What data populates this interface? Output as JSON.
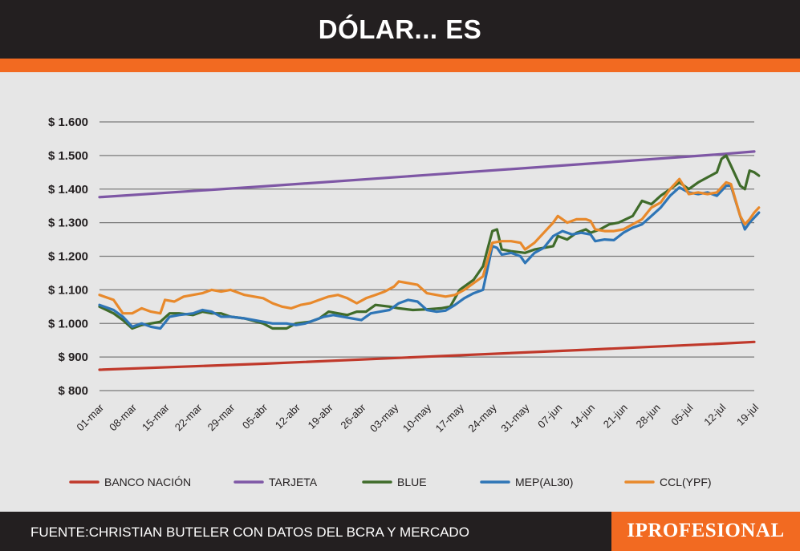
{
  "header": {
    "title": "DÓLAR... ES"
  },
  "footer": {
    "source": "FUENTE:CHRISTIAN BUTELER CON DATOS DEL BCRA Y MERCADO",
    "brand": "IPROFESIONAL"
  },
  "colors": {
    "header_bg": "#231f20",
    "accent": "#f26a21",
    "background": "#e6e6e6"
  },
  "chart_data": {
    "type": "line",
    "title": "",
    "xlabel": "",
    "ylabel": "",
    "ylim": [
      800,
      1600
    ],
    "yticks": [
      800,
      900,
      1000,
      1100,
      1200,
      1300,
      1400,
      1500,
      1600
    ],
    "ytick_labels": [
      "$ 800",
      "$ 900",
      "$ 1.000",
      "$ 1.100",
      "$ 1.200",
      "$ 1.300",
      "$ 1.400",
      "$ 1.500",
      "$ 1.600"
    ],
    "grid": true,
    "legend_position": "bottom",
    "xlim": [
      0,
      140
    ],
    "xticks": [
      {
        "label": "01-mar",
        "x": 0
      },
      {
        "label": "08-mar",
        "x": 7
      },
      {
        "label": "15-mar",
        "x": 14
      },
      {
        "label": "22-mar",
        "x": 21
      },
      {
        "label": "29-mar",
        "x": 28
      },
      {
        "label": "05-abr",
        "x": 35
      },
      {
        "label": "12-abr",
        "x": 42
      },
      {
        "label": "19-abr",
        "x": 49
      },
      {
        "label": "26-abr",
        "x": 56
      },
      {
        "label": "03-may",
        "x": 63
      },
      {
        "label": "10-may",
        "x": 70
      },
      {
        "label": "17-may",
        "x": 77
      },
      {
        "label": "24-may",
        "x": 84
      },
      {
        "label": "31-may",
        "x": 91
      },
      {
        "label": "07-jun",
        "x": 98
      },
      {
        "label": "14-jun",
        "x": 105
      },
      {
        "label": "21-jun",
        "x": 112
      },
      {
        "label": "28-jun",
        "x": 119
      },
      {
        "label": "05-jul",
        "x": 126
      },
      {
        "label": "12-jul",
        "x": 133
      },
      {
        "label": "19-jul",
        "x": 140
      }
    ],
    "series": [
      {
        "name": "BANCO NACIÓN",
        "color": "#c0392b",
        "points": [
          [
            0,
            862
          ],
          [
            35,
            880
          ],
          [
            70,
            901
          ],
          [
            105,
            922
          ],
          [
            133,
            940
          ],
          [
            140,
            945
          ]
        ]
      },
      {
        "name": "TARJETA",
        "color": "#7e57a5",
        "points": [
          [
            0,
            1376
          ],
          [
            35,
            1408
          ],
          [
            70,
            1442
          ],
          [
            105,
            1476
          ],
          [
            133,
            1504
          ],
          [
            140,
            1512
          ]
        ]
      },
      {
        "name": "BLUE",
        "color": "#3f6b2a",
        "points": [
          [
            0,
            1050
          ],
          [
            3,
            1030
          ],
          [
            5,
            1010
          ],
          [
            7,
            985
          ],
          [
            9,
            995
          ],
          [
            11,
            1000
          ],
          [
            13,
            1005
          ],
          [
            15,
            1030
          ],
          [
            17,
            1030
          ],
          [
            20,
            1025
          ],
          [
            22,
            1035
          ],
          [
            24,
            1030
          ],
          [
            26,
            1030
          ],
          [
            28,
            1020
          ],
          [
            31,
            1015
          ],
          [
            35,
            1000
          ],
          [
            37,
            985
          ],
          [
            40,
            985
          ],
          [
            42,
            1000
          ],
          [
            45,
            1005
          ],
          [
            47,
            1015
          ],
          [
            49,
            1035
          ],
          [
            51,
            1030
          ],
          [
            53,
            1025
          ],
          [
            55,
            1035
          ],
          [
            57,
            1035
          ],
          [
            59,
            1055
          ],
          [
            62,
            1050
          ],
          [
            64,
            1045
          ],
          [
            67,
            1040
          ],
          [
            70,
            1042
          ],
          [
            73,
            1045
          ],
          [
            75,
            1050
          ],
          [
            77,
            1100
          ],
          [
            80,
            1130
          ],
          [
            82,
            1170
          ],
          [
            84,
            1275
          ],
          [
            85,
            1280
          ],
          [
            86,
            1220
          ],
          [
            88,
            1215
          ],
          [
            91,
            1210
          ],
          [
            93,
            1220
          ],
          [
            95,
            1225
          ],
          [
            97,
            1230
          ],
          [
            98,
            1260
          ],
          [
            100,
            1250
          ],
          [
            102,
            1270
          ],
          [
            104,
            1280
          ],
          [
            105,
            1270
          ],
          [
            107,
            1280
          ],
          [
            109,
            1295
          ],
          [
            111,
            1300
          ],
          [
            114,
            1320
          ],
          [
            116,
            1365
          ],
          [
            118,
            1355
          ],
          [
            120,
            1380
          ],
          [
            122,
            1400
          ],
          [
            124,
            1420
          ],
          [
            126,
            1400
          ],
          [
            128,
            1420
          ],
          [
            130,
            1435
          ],
          [
            132,
            1450
          ],
          [
            133,
            1490
          ],
          [
            134,
            1500
          ],
          [
            135,
            1470
          ],
          [
            137,
            1410
          ],
          [
            138,
            1400
          ],
          [
            139,
            1455
          ],
          [
            140,
            1450
          ],
          [
            141,
            1440
          ]
        ]
      },
      {
        "name": "MEP(AL30)",
        "color": "#2e75b6",
        "points": [
          [
            0,
            1055
          ],
          [
            3,
            1040
          ],
          [
            5,
            1020
          ],
          [
            7,
            990
          ],
          [
            9,
            1000
          ],
          [
            11,
            990
          ],
          [
            13,
            985
          ],
          [
            15,
            1020
          ],
          [
            17,
            1025
          ],
          [
            20,
            1030
          ],
          [
            22,
            1040
          ],
          [
            24,
            1035
          ],
          [
            26,
            1020
          ],
          [
            28,
            1020
          ],
          [
            31,
            1015
          ],
          [
            35,
            1005
          ],
          [
            37,
            1000
          ],
          [
            40,
            1000
          ],
          [
            42,
            995
          ],
          [
            44,
            1000
          ],
          [
            46,
            1010
          ],
          [
            48,
            1020
          ],
          [
            50,
            1025
          ],
          [
            52,
            1020
          ],
          [
            54,
            1015
          ],
          [
            56,
            1010
          ],
          [
            58,
            1030
          ],
          [
            60,
            1035
          ],
          [
            62,
            1040
          ],
          [
            64,
            1060
          ],
          [
            66,
            1070
          ],
          [
            68,
            1065
          ],
          [
            70,
            1040
          ],
          [
            72,
            1035
          ],
          [
            74,
            1038
          ],
          [
            76,
            1055
          ],
          [
            78,
            1075
          ],
          [
            80,
            1090
          ],
          [
            82,
            1100
          ],
          [
            84,
            1230
          ],
          [
            85,
            1225
          ],
          [
            86,
            1205
          ],
          [
            88,
            1210
          ],
          [
            90,
            1200
          ],
          [
            91,
            1180
          ],
          [
            93,
            1210
          ],
          [
            95,
            1225
          ],
          [
            97,
            1260
          ],
          [
            99,
            1275
          ],
          [
            101,
            1265
          ],
          [
            103,
            1270
          ],
          [
            105,
            1265
          ],
          [
            106,
            1245
          ],
          [
            108,
            1250
          ],
          [
            110,
            1248
          ],
          [
            112,
            1270
          ],
          [
            114,
            1285
          ],
          [
            116,
            1295
          ],
          [
            118,
            1320
          ],
          [
            120,
            1345
          ],
          [
            122,
            1380
          ],
          [
            124,
            1405
          ],
          [
            126,
            1390
          ],
          [
            128,
            1385
          ],
          [
            130,
            1390
          ],
          [
            132,
            1380
          ],
          [
            134,
            1410
          ],
          [
            135,
            1410
          ],
          [
            137,
            1320
          ],
          [
            138,
            1280
          ],
          [
            139,
            1300
          ],
          [
            140,
            1315
          ],
          [
            141,
            1330
          ]
        ]
      },
      {
        "name": "CCL(YPF)",
        "color": "#e8892b",
        "points": [
          [
            0,
            1085
          ],
          [
            3,
            1070
          ],
          [
            5,
            1030
          ],
          [
            7,
            1030
          ],
          [
            9,
            1045
          ],
          [
            11,
            1035
          ],
          [
            13,
            1030
          ],
          [
            14,
            1070
          ],
          [
            16,
            1065
          ],
          [
            18,
            1080
          ],
          [
            20,
            1085
          ],
          [
            22,
            1090
          ],
          [
            24,
            1100
          ],
          [
            26,
            1095
          ],
          [
            28,
            1100
          ],
          [
            31,
            1085
          ],
          [
            35,
            1075
          ],
          [
            37,
            1060
          ],
          [
            39,
            1050
          ],
          [
            41,
            1045
          ],
          [
            43,
            1055
          ],
          [
            45,
            1060
          ],
          [
            47,
            1070
          ],
          [
            49,
            1080
          ],
          [
            51,
            1085
          ],
          [
            53,
            1075
          ],
          [
            55,
            1060
          ],
          [
            57,
            1075
          ],
          [
            59,
            1085
          ],
          [
            61,
            1095
          ],
          [
            63,
            1110
          ],
          [
            64,
            1125
          ],
          [
            66,
            1120
          ],
          [
            68,
            1115
          ],
          [
            70,
            1090
          ],
          [
            72,
            1085
          ],
          [
            74,
            1080
          ],
          [
            76,
            1085
          ],
          [
            78,
            1100
          ],
          [
            80,
            1120
          ],
          [
            82,
            1140
          ],
          [
            84,
            1240
          ],
          [
            86,
            1245
          ],
          [
            88,
            1245
          ],
          [
            90,
            1240
          ],
          [
            91,
            1220
          ],
          [
            93,
            1240
          ],
          [
            95,
            1270
          ],
          [
            97,
            1300
          ],
          [
            98,
            1320
          ],
          [
            100,
            1300
          ],
          [
            102,
            1310
          ],
          [
            104,
            1310
          ],
          [
            105,
            1305
          ],
          [
            106,
            1280
          ],
          [
            108,
            1275
          ],
          [
            110,
            1275
          ],
          [
            112,
            1280
          ],
          [
            114,
            1295
          ],
          [
            116,
            1310
          ],
          [
            118,
            1345
          ],
          [
            120,
            1360
          ],
          [
            122,
            1400
          ],
          [
            124,
            1430
          ],
          [
            126,
            1385
          ],
          [
            128,
            1390
          ],
          [
            130,
            1385
          ],
          [
            132,
            1390
          ],
          [
            134,
            1420
          ],
          [
            135,
            1415
          ],
          [
            137,
            1320
          ],
          [
            138,
            1295
          ],
          [
            139,
            1310
          ],
          [
            140,
            1330
          ],
          [
            141,
            1345
          ]
        ]
      }
    ]
  }
}
